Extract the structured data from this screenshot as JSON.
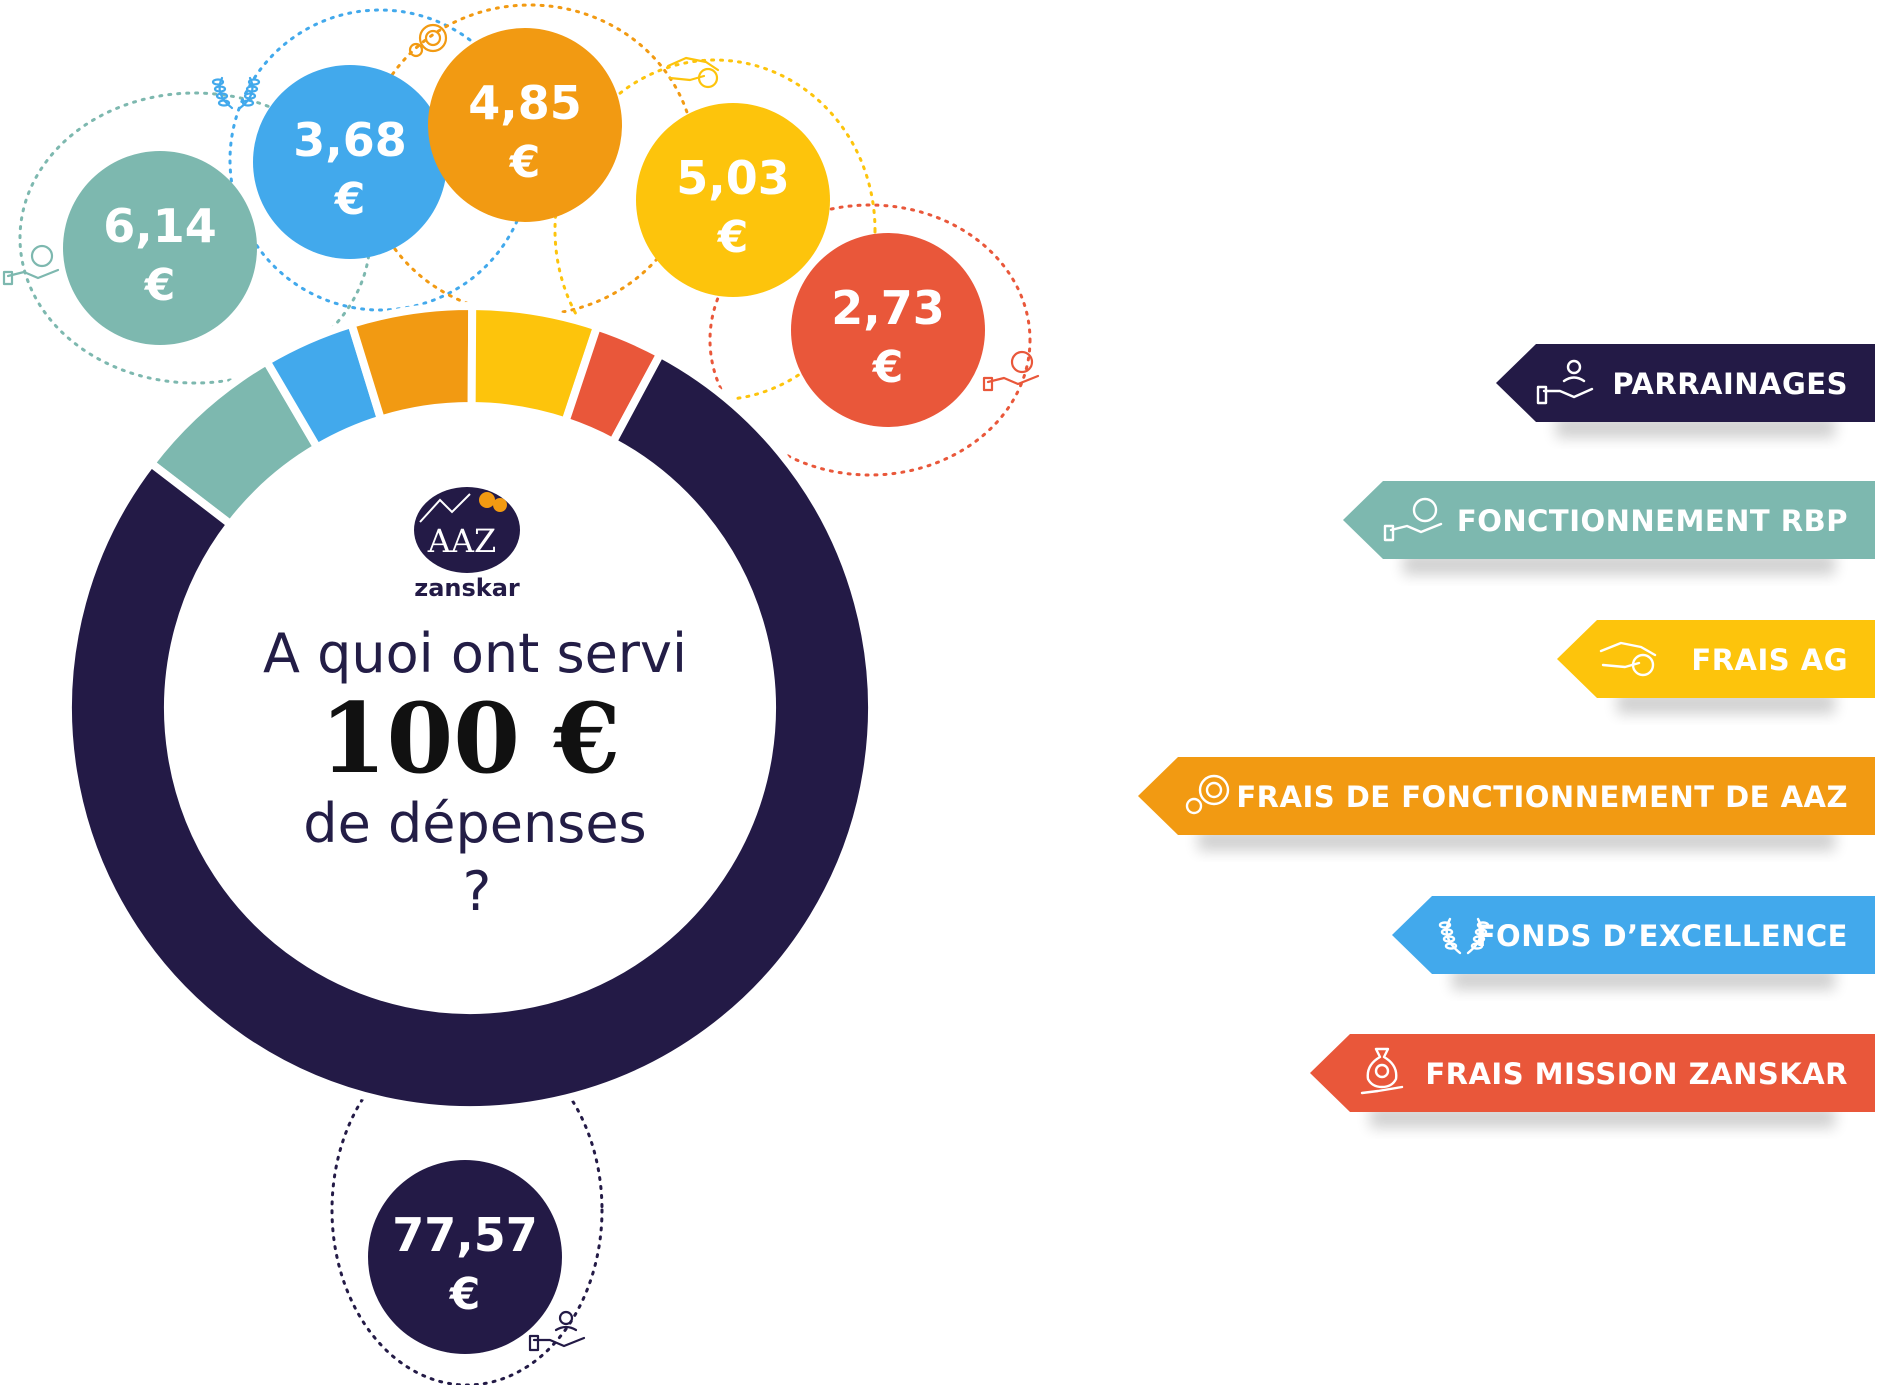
{
  "chart_data": {
    "type": "pie",
    "title_line1": "A quoi ont servi",
    "title_amount": "100 €",
    "title_line3": "de dépenses",
    "title_line4": "?",
    "logo": {
      "initials": "AAZ",
      "name": "zanskar"
    },
    "series": [
      {
        "name": "PARRAINAGES",
        "value": 77.57,
        "label": "77,57",
        "unit": "€",
        "color": "#231a46",
        "icon": "hand-person-icon"
      },
      {
        "name": "FONCTIONNEMENT RBP",
        "value": 6.14,
        "label": "6,14",
        "unit": "€",
        "color": "#7db8af",
        "icon": "hand-euro-coin-icon"
      },
      {
        "name": "FONDS D’EXCELLENCE",
        "value": 3.68,
        "label": "3,68",
        "unit": "€",
        "color": "#42a9ec",
        "icon": "laurel-icon"
      },
      {
        "name": "FRAIS DE FONCTIONNEMENT DE AAZ",
        "value": 4.85,
        "label": "4,85",
        "unit": "€",
        "color": "#f29a12",
        "icon": "gears-euro-icon"
      },
      {
        "name": "FRAIS AG",
        "value": 5.03,
        "label": "5,03",
        "unit": "€",
        "color": "#fdc40c",
        "icon": "handshake-coin-icon"
      },
      {
        "name": "FRAIS MISSION ZANSKAR",
        "value": 2.73,
        "label": "2,73",
        "unit": "€",
        "color": "#e9573a",
        "icon": "money-bag-hand-icon"
      }
    ],
    "legend_order": [
      "PARRAINAGES",
      "FONCTIONNEMENT RBP",
      "FRAIS AG",
      "FRAIS DE FONCTIONNEMENT DE AAZ",
      "FONDS D’EXCELLENCE",
      "FRAIS MISSION ZANSKAR"
    ]
  }
}
